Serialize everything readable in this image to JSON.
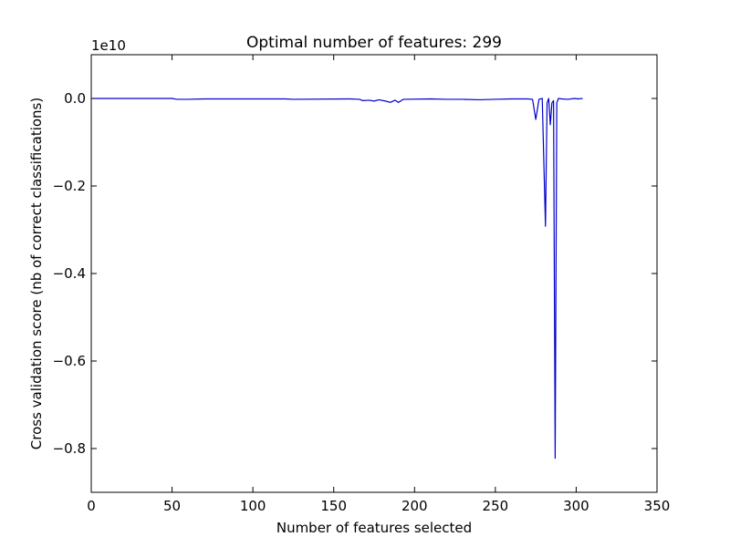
{
  "chart_data": {
    "type": "line",
    "title": "Optimal number of features: 299",
    "xlabel": "Number of features selected",
    "ylabel": "Cross validation score (nb of correct classifications)",
    "offset_text": "1e10",
    "xlim": [
      0,
      350
    ],
    "ylim": [
      -0.9,
      0.1
    ],
    "y_scale": "1e10",
    "x_ticks": [
      0,
      50,
      100,
      150,
      200,
      250,
      300,
      350
    ],
    "y_ticks": [
      0.0,
      -0.2,
      -0.4,
      -0.6,
      -0.8
    ],
    "x_tick_labels": [
      "0",
      "50",
      "100",
      "150",
      "200",
      "250",
      "300",
      "350"
    ],
    "y_tick_labels": [
      "0.0",
      "−0.2",
      "−0.4",
      "−0.6",
      "−0.8"
    ],
    "grid": false,
    "legend": "none",
    "line_color": "#0000cc",
    "series": [
      {
        "points": [
          [
            1,
            0.0
          ],
          [
            50,
            0.0
          ],
          [
            53,
            -0.002
          ],
          [
            60,
            -0.002
          ],
          [
            70,
            -0.001
          ],
          [
            120,
            -0.001
          ],
          [
            125,
            -0.002
          ],
          [
            160,
            -0.001
          ],
          [
            166,
            -0.002
          ],
          [
            168,
            -0.005
          ],
          [
            172,
            -0.004
          ],
          [
            175,
            -0.006
          ],
          [
            178,
            -0.003
          ],
          [
            182,
            -0.006
          ],
          [
            185,
            -0.009
          ],
          [
            188,
            -0.004
          ],
          [
            190,
            -0.009
          ],
          [
            193,
            -0.002
          ],
          [
            210,
            -0.001
          ],
          [
            220,
            -0.002
          ],
          [
            230,
            -0.002
          ],
          [
            240,
            -0.003
          ],
          [
            250,
            -0.002
          ],
          [
            260,
            -0.001
          ],
          [
            270,
            -0.001
          ],
          [
            273,
            -0.002
          ],
          [
            275,
            -0.048
          ],
          [
            277,
            -0.002
          ],
          [
            279,
            0.0
          ],
          [
            281,
            -0.292
          ],
          [
            282,
            -0.01
          ],
          [
            283,
            0.0
          ],
          [
            284,
            -0.06
          ],
          [
            285,
            -0.01
          ],
          [
            286,
            -0.005
          ],
          [
            287,
            -0.822
          ],
          [
            288,
            -0.01
          ],
          [
            289,
            0.0
          ],
          [
            291,
            -0.001
          ],
          [
            295,
            -0.002
          ],
          [
            299,
            0.0
          ],
          [
            301,
            -0.001
          ],
          [
            304,
            0.0
          ]
        ]
      }
    ]
  }
}
